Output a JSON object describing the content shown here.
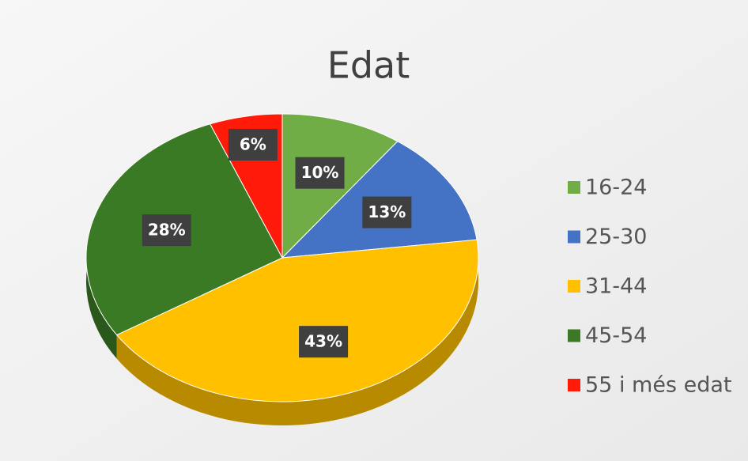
{
  "chart_data": {
    "type": "pie",
    "title": "Edat",
    "categories": [
      "16-24",
      "25-30",
      "31-44",
      "45-54",
      "55 i més edat"
    ],
    "values": [
      10,
      13,
      43,
      28,
      6
    ],
    "value_labels": [
      "10%",
      "13%",
      "43%",
      "28%",
      "6%"
    ],
    "colors": [
      "#70ad47",
      "#4472c4",
      "#ffc000",
      "#3b7a25",
      "#ff1a0a"
    ],
    "legend": "right"
  }
}
